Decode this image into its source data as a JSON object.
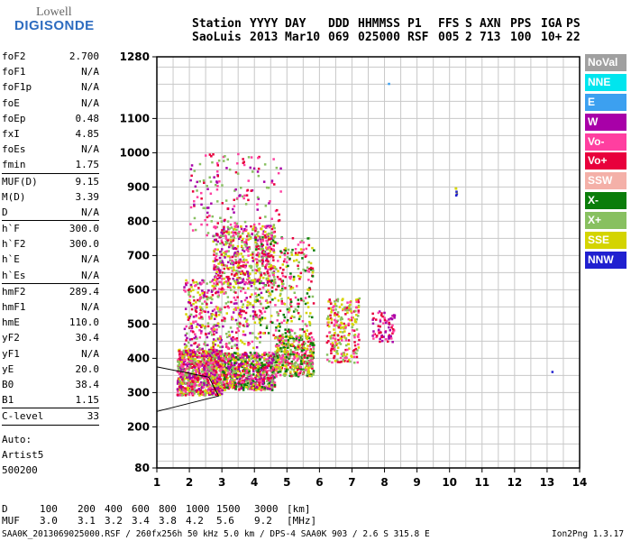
{
  "logo": {
    "line1": "Lowell",
    "line2": "DIGISONDE"
  },
  "header": {
    "row1": [
      "Station",
      "YYYY",
      "DAY",
      "DDD",
      "HHMMSS",
      "P1",
      "FFS",
      "S",
      "AXN",
      "PPS",
      "IGA",
      "PS"
    ],
    "row2": [
      "SaoLuis",
      "2013",
      "Mar10",
      "069",
      "025000",
      "RSF",
      "005",
      "2",
      "713",
      "100",
      "10+",
      "22"
    ]
  },
  "params": [
    [
      {
        "k": "foF2",
        "v": "2.700"
      },
      {
        "k": "foF1",
        "v": "N/A"
      },
      {
        "k": "foF1p",
        "v": "N/A"
      },
      {
        "k": "foE",
        "v": "N/A"
      },
      {
        "k": "foEp",
        "v": "0.48"
      },
      {
        "k": "fxI",
        "v": "4.85"
      },
      {
        "k": "foEs",
        "v": "N/A"
      },
      {
        "k": "fmin",
        "v": "1.75"
      }
    ],
    [
      {
        "k": "MUF(D)",
        "v": "9.15"
      },
      {
        "k": "M(D)",
        "v": "3.39"
      },
      {
        "k": "D",
        "v": "N/A"
      }
    ],
    [
      {
        "k": "h`F",
        "v": "300.0"
      },
      {
        "k": "h`F2",
        "v": "300.0"
      },
      {
        "k": "h`E",
        "v": "N/A"
      },
      {
        "k": "h`Es",
        "v": "N/A"
      }
    ],
    [
      {
        "k": "hmF2",
        "v": "289.4"
      },
      {
        "k": "hmF1",
        "v": "N/A"
      },
      {
        "k": "hmE",
        "v": "110.0"
      },
      {
        "k": "yF2",
        "v": "30.4"
      },
      {
        "k": "yF1",
        "v": "N/A"
      },
      {
        "k": "yE",
        "v": "20.0"
      },
      {
        "k": "B0",
        "v": "38.4"
      },
      {
        "k": "B1",
        "v": "1.15"
      }
    ],
    [
      {
        "k": "C-level",
        "v": "33"
      }
    ]
  ],
  "auto": {
    "line1": "Auto:",
    "line2": "Artist5",
    "line3": "500200"
  },
  "legend": [
    {
      "label": "NoVal",
      "color": "#a0a0a0"
    },
    {
      "label": "NNE",
      "color": "#00e5ee"
    },
    {
      "label": "E",
      "color": "#3ca0f0"
    },
    {
      "label": "W",
      "color": "#a800a8"
    },
    {
      "label": "Vo-",
      "color": "#ff3fa0"
    },
    {
      "label": "Vo+",
      "color": "#e8003c"
    },
    {
      "label": "SSW",
      "color": "#f4b0a8"
    },
    {
      "label": "X-",
      "color": "#0a7d0a"
    },
    {
      "label": "X+",
      "color": "#88c060"
    },
    {
      "label": "SSE",
      "color": "#d4d400"
    },
    {
      "label": "NNW",
      "color": "#2020d0"
    }
  ],
  "footer": {
    "d_row": [
      "D",
      "100",
      "200",
      "400",
      "600",
      "800",
      "1000",
      "1500",
      "3000",
      "[km]"
    ],
    "muf_row": [
      "MUF",
      "3.0",
      "3.1",
      "3.2",
      "3.4",
      "3.8",
      "4.2",
      "5.6",
      "9.2",
      "[MHz]"
    ],
    "file_info": "SAA0K_2013069025000.RSF / 260fx256h 50 kHz 5.0 km / DPS-4 SAA0K 903 / 2.6 S 315.8 E",
    "version": "Ion2Png 1.3.17"
  },
  "chart_data": {
    "type": "scatter",
    "xlim": [
      1,
      14
    ],
    "ylim": [
      80,
      1280
    ],
    "x_ticks": [
      "1",
      "2",
      "3",
      "4",
      "5",
      "6",
      "7",
      "8",
      "9",
      "10",
      "11",
      "12",
      "13",
      "14"
    ],
    "y_ticks": [
      "80",
      "200",
      "300",
      "400",
      "500",
      "600",
      "700",
      "800",
      "900",
      "1000",
      "1100",
      "1280"
    ],
    "y_tick_values": [
      80,
      200,
      300,
      400,
      500,
      600,
      700,
      800,
      900,
      1000,
      1100,
      1280
    ],
    "grid": true,
    "clusters": [
      {
        "x": [
          1.6,
          3.0
        ],
        "y": [
          295,
          430
        ],
        "n": 900,
        "colors": [
          "#e8003c",
          "#ff3fa0",
          "#a800a8",
          "#d4d400",
          "#88c060"
        ]
      },
      {
        "x": [
          3.0,
          4.6
        ],
        "y": [
          310,
          420
        ],
        "n": 700,
        "colors": [
          "#e8003c",
          "#ff3fa0",
          "#d4d400",
          "#88c060",
          "#a800a8",
          "#0a7d0a"
        ]
      },
      {
        "x": [
          4.6,
          5.8
        ],
        "y": [
          350,
          470
        ],
        "n": 450,
        "colors": [
          "#d4d400",
          "#88c060",
          "#e8003c",
          "#ff3fa0",
          "#0a7d0a"
        ]
      },
      {
        "x": [
          1.8,
          4.2
        ],
        "y": [
          430,
          640
        ],
        "n": 450,
        "colors": [
          "#e8003c",
          "#ff3fa0",
          "#a800a8",
          "#d4d400",
          "#88c060"
        ]
      },
      {
        "x": [
          2.7,
          4.6
        ],
        "y": [
          620,
          790
        ],
        "n": 500,
        "colors": [
          "#e8003c",
          "#ff3fa0",
          "#d4d400",
          "#a800a8",
          "#88c060"
        ]
      },
      {
        "x": [
          4.0,
          5.8
        ],
        "y": [
          470,
          760
        ],
        "n": 320,
        "colors": [
          "#88c060",
          "#d4d400",
          "#ff3fa0",
          "#e8003c",
          "#0a7d0a"
        ]
      },
      {
        "x": [
          2.0,
          4.8
        ],
        "y": [
          760,
          1000
        ],
        "n": 180,
        "colors": [
          "#a800a8",
          "#ff3fa0",
          "#e8003c",
          "#88c060"
        ]
      },
      {
        "x": [
          6.2,
          7.2
        ],
        "y": [
          390,
          580
        ],
        "n": 240,
        "colors": [
          "#d4d400",
          "#e8003c",
          "#ff3fa0",
          "#88c060"
        ]
      },
      {
        "x": [
          7.6,
          8.3
        ],
        "y": [
          450,
          540
        ],
        "n": 70,
        "colors": [
          "#a800a8",
          "#ff3fa0",
          "#e8003c"
        ]
      },
      {
        "x": [
          10.15,
          10.2
        ],
        "y": [
          875,
          905
        ],
        "n": 6,
        "colors": [
          "#2020d0",
          "#d4d400"
        ]
      },
      {
        "x": [
          13.1,
          13.15
        ],
        "y": [
          360,
          365
        ],
        "n": 1,
        "colors": [
          "#2020d0"
        ]
      },
      {
        "x": [
          8.1,
          8.12
        ],
        "y": [
          1200,
          1205
        ],
        "n": 1,
        "colors": [
          "#3ca0f0"
        ]
      }
    ],
    "trace_line": {
      "x": [
        1.0,
        2.9,
        2.6,
        1.0
      ],
      "y": [
        245,
        290,
        345,
        375
      ]
    }
  }
}
